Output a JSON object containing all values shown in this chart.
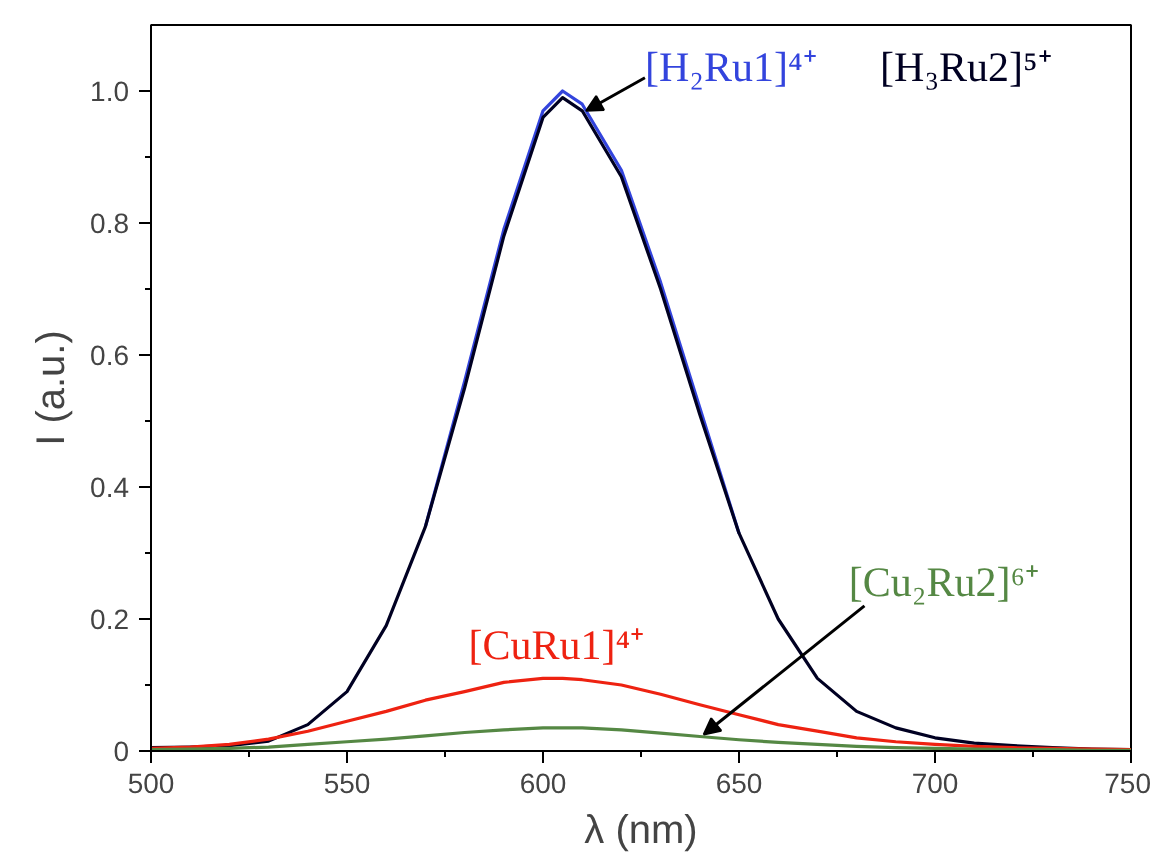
{
  "chart_data": {
    "type": "line",
    "xlabel": "λ (nm)",
    "ylabel": "I (a.u.)",
    "xlim": [
      500,
      750
    ],
    "xticks": [
      500,
      550,
      600,
      650,
      700,
      750
    ],
    "ylim": [
      0,
      1.1
    ],
    "yticks": [
      {
        "value": 0,
        "label": "0"
      },
      {
        "value": 0.2,
        "label": "0.2"
      },
      {
        "value": 0.4,
        "label": "0.4"
      },
      {
        "value": 0.6,
        "label": "0.6"
      },
      {
        "value": 0.8,
        "label": "0.8"
      },
      {
        "value": 1,
        "label": "1.0"
      }
    ],
    "grid": false,
    "marker": "none",
    "line_style": "solid",
    "x": [
      500,
      510,
      520,
      530,
      540,
      550,
      560,
      570,
      580,
      590,
      600,
      605,
      610,
      620,
      630,
      640,
      650,
      660,
      670,
      680,
      690,
      700,
      710,
      720,
      730,
      740,
      750
    ],
    "series": [
      {
        "name": "[H₂Ru1]⁴⁺",
        "color": "#3344dd",
        "values": [
          null,
          null,
          null,
          null,
          null,
          null,
          null,
          0.34,
          0.56,
          0.79,
          0.97,
          1.0,
          0.98,
          0.88,
          0.71,
          0.52,
          0.33,
          null,
          null,
          null,
          null,
          null,
          null,
          null,
          null,
          null,
          null
        ]
      },
      {
        "name": "[H₃Ru2]⁵⁺",
        "color": "#000022",
        "values": [
          0.005,
          0.006,
          0.008,
          0.015,
          0.04,
          0.09,
          0.19,
          0.34,
          0.55,
          0.78,
          0.96,
          0.99,
          0.97,
          0.87,
          0.7,
          0.51,
          0.33,
          0.2,
          0.11,
          0.06,
          0.035,
          0.02,
          0.012,
          0.008,
          0.005,
          0.003,
          0.002
        ]
      },
      {
        "name": "[CuRu1]⁴⁺",
        "color": "#ee2211",
        "values": [
          0.004,
          0.006,
          0.01,
          0.018,
          0.03,
          0.045,
          0.06,
          0.077,
          0.09,
          0.104,
          0.11,
          0.11,
          0.108,
          0.1,
          0.086,
          0.07,
          0.055,
          0.04,
          0.03,
          0.02,
          0.014,
          0.01,
          0.007,
          0.005,
          0.004,
          0.003,
          0.002
        ]
      },
      {
        "name": "[Cu₂Ru2]⁶⁺",
        "color": "#558844",
        "values": [
          0.002,
          0.003,
          0.004,
          0.006,
          0.01,
          0.014,
          0.018,
          0.023,
          0.028,
          0.032,
          0.035,
          0.035,
          0.035,
          0.032,
          0.027,
          0.022,
          0.017,
          0.013,
          0.01,
          0.007,
          0.005,
          0.004,
          0.003,
          0.002,
          0.002,
          0.001,
          0.001
        ]
      }
    ]
  }
}
